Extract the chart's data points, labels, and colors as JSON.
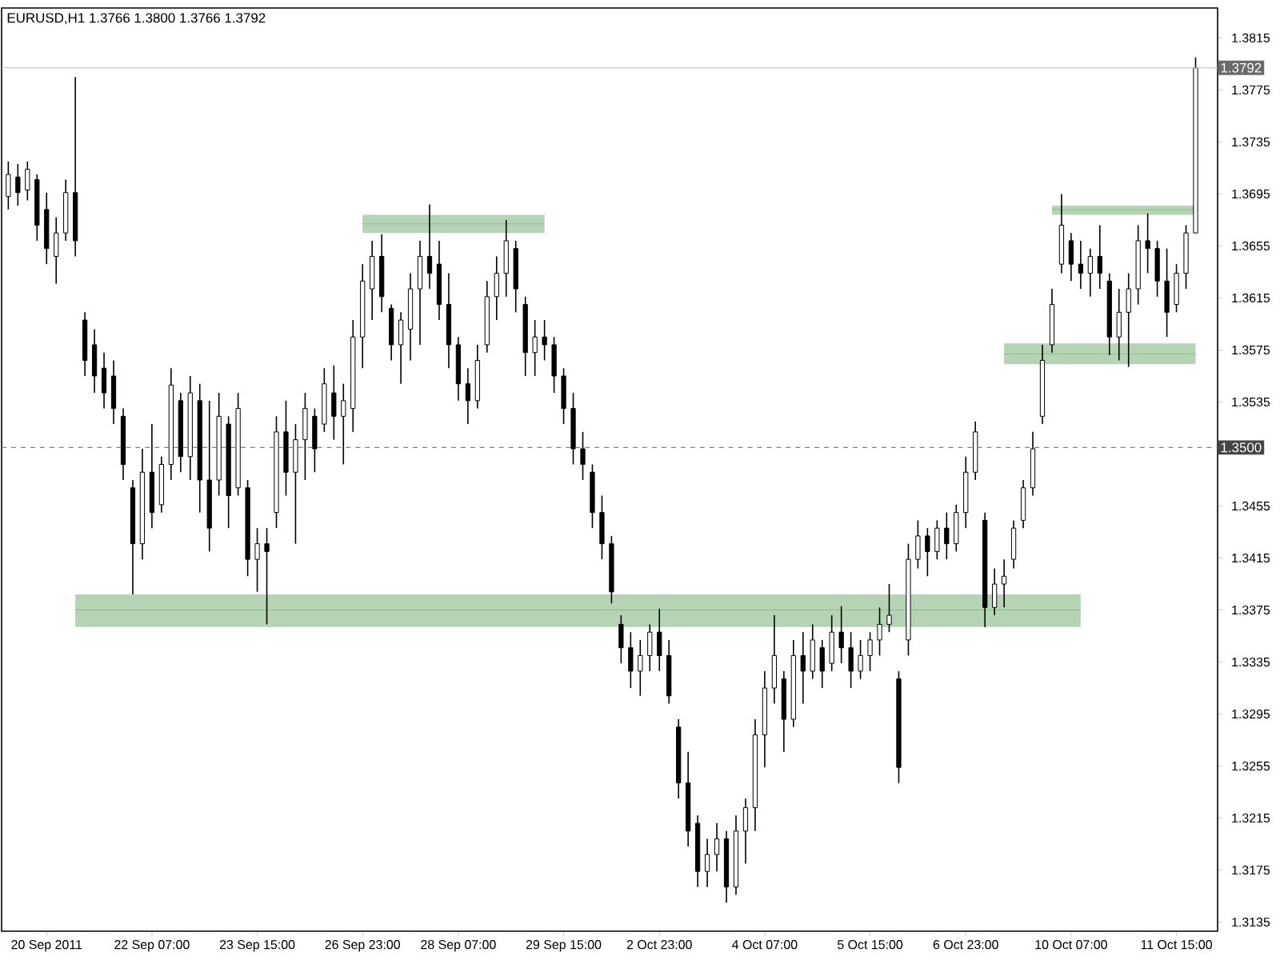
{
  "chart_data": {
    "type": "candlestick",
    "title": "EURUSD,H1  1.3766 1.3800 1.3766 1.3792",
    "categories": [
      null,
      null,
      null,
      null,
      "20 Sep 2011",
      null,
      null,
      null,
      null,
      null,
      null,
      null,
      null,
      null,
      null,
      "22 Sep 07:00",
      null,
      null,
      null,
      null,
      null,
      null,
      null,
      null,
      null,
      null,
      "23 Sep 15:00",
      null,
      null,
      null,
      null,
      null,
      null,
      null,
      null,
      null,
      null,
      "26 Sep 23:00",
      null,
      null,
      null,
      null,
      null,
      null,
      null,
      null,
      null,
      "28 Sep 07:00",
      null,
      null,
      null,
      null,
      null,
      null,
      null,
      null,
      null,
      null,
      "29 Sep 15:00",
      null,
      null,
      null,
      null,
      null,
      null,
      null,
      null,
      null,
      "2 Oct 23:00",
      null,
      null,
      null,
      null,
      null,
      null,
      null,
      null,
      null,
      null,
      "4 Oct 07:00",
      null,
      null,
      null,
      null,
      null,
      null,
      null,
      null,
      null,
      null,
      "5 Oct 15:00",
      null,
      null,
      null,
      null,
      null,
      null,
      null,
      null,
      null,
      "6 Oct 23:00",
      null,
      null,
      null,
      null,
      null,
      null,
      null,
      null,
      null,
      null,
      "10 Oct 07:00",
      null,
      null,
      null,
      null,
      null,
      null,
      null,
      null,
      null,
      null,
      "11 Oct 15:00",
      null,
      null
    ],
    "ohlc": [
      [
        1.3693,
        1.372,
        1.3683,
        1.371
      ],
      [
        1.3708,
        1.3718,
        1.3686,
        1.3696
      ],
      [
        1.3698,
        1.372,
        1.369,
        1.3714
      ],
      [
        1.3706,
        1.371,
        1.3659,
        1.3671
      ],
      [
        1.3683,
        1.3696,
        1.3641,
        1.3653
      ],
      [
        1.3647,
        1.3677,
        1.3626,
        1.3665
      ],
      [
        1.3665,
        1.3706,
        1.3659,
        1.3696
      ],
      [
        1.3696,
        1.3785,
        1.3647,
        1.3659
      ],
      [
        1.3598,
        1.3604,
        1.3555,
        1.3567
      ],
      [
        1.3579,
        1.3591,
        1.3542,
        1.3555
      ],
      [
        1.3561,
        1.3573,
        1.353,
        1.3542
      ],
      [
        1.3555,
        1.3567,
        1.3518,
        1.353
      ],
      [
        1.3524,
        1.353,
        1.3475,
        1.3487
      ],
      [
        1.3469,
        1.3475,
        1.3387,
        1.3426
      ],
      [
        1.3426,
        1.3499,
        1.3414,
        1.3481
      ],
      [
        1.3481,
        1.3518,
        1.3438,
        1.345
      ],
      [
        1.3456,
        1.3493,
        1.345,
        1.3487
      ],
      [
        1.3487,
        1.3561,
        1.3475,
        1.3548
      ],
      [
        1.3536,
        1.3542,
        1.3481,
        1.3493
      ],
      [
        1.3493,
        1.3555,
        1.3475,
        1.3542
      ],
      [
        1.3536,
        1.3549,
        1.345,
        1.3475
      ],
      [
        1.3475,
        1.3536,
        1.342,
        1.3438
      ],
      [
        1.3475,
        1.3542,
        1.3463,
        1.3524
      ],
      [
        1.3518,
        1.3524,
        1.3438,
        1.3463
      ],
      [
        1.3469,
        1.3542,
        1.3463,
        1.353
      ],
      [
        1.3469,
        1.3475,
        1.3401,
        1.3414
      ],
      [
        1.3414,
        1.3438,
        1.3389,
        1.3426
      ],
      [
        1.3426,
        1.3438,
        1.3364,
        1.342
      ],
      [
        1.345,
        1.3524,
        1.3438,
        1.3512
      ],
      [
        1.3512,
        1.3536,
        1.3463,
        1.3481
      ],
      [
        1.3481,
        1.3518,
        1.3426,
        1.3506
      ],
      [
        1.3506,
        1.3542,
        1.3475,
        1.353
      ],
      [
        1.3524,
        1.353,
        1.3481,
        1.3499
      ],
      [
        1.3518,
        1.3561,
        1.3512,
        1.3549
      ],
      [
        1.3542,
        1.3563,
        1.3506,
        1.3524
      ],
      [
        1.3524,
        1.3549,
        1.3487,
        1.3536
      ],
      [
        1.353,
        1.3598,
        1.3512,
        1.3585
      ],
      [
        1.3585,
        1.3641,
        1.3561,
        1.3628
      ],
      [
        1.3622,
        1.3659,
        1.3598,
        1.3647
      ],
      [
        1.3647,
        1.3664,
        1.3604,
        1.3616
      ],
      [
        1.3607,
        1.361,
        1.3567,
        1.3579
      ],
      [
        1.3579,
        1.3604,
        1.3549,
        1.3598
      ],
      [
        1.3591,
        1.3634,
        1.3567,
        1.3622
      ],
      [
        1.3622,
        1.3659,
        1.3579,
        1.3647
      ],
      [
        1.3647,
        1.3687,
        1.3622,
        1.3634
      ],
      [
        1.3641,
        1.3659,
        1.3598,
        1.361
      ],
      [
        1.361,
        1.3634,
        1.3561,
        1.3579
      ],
      [
        1.3579,
        1.3585,
        1.3536,
        1.3549
      ],
      [
        1.3549,
        1.3561,
        1.3518,
        1.3536
      ],
      [
        1.3536,
        1.3579,
        1.353,
        1.3567
      ],
      [
        1.3579,
        1.3628,
        1.3573,
        1.3616
      ],
      [
        1.3616,
        1.3647,
        1.3598,
        1.3634
      ],
      [
        1.3634,
        1.3675,
        1.3616,
        1.3659
      ],
      [
        1.3653,
        1.3659,
        1.3604,
        1.3622
      ],
      [
        1.361,
        1.3616,
        1.3555,
        1.3573
      ],
      [
        1.3573,
        1.3598,
        1.3555,
        1.3585
      ],
      [
        1.3585,
        1.3598,
        1.3567,
        1.3579
      ],
      [
        1.3579,
        1.3585,
        1.3542,
        1.3555
      ],
      [
        1.3555,
        1.3561,
        1.3518,
        1.353
      ],
      [
        1.353,
        1.3542,
        1.3487,
        1.3499
      ],
      [
        1.3499,
        1.3512,
        1.3475,
        1.3487
      ],
      [
        1.3481,
        1.3487,
        1.3438,
        1.345
      ],
      [
        1.345,
        1.3463,
        1.3414,
        1.3426
      ],
      [
        1.3426,
        1.3432,
        1.338,
        1.3389
      ],
      [
        1.3364,
        1.3371,
        1.3334,
        1.3346
      ],
      [
        1.3346,
        1.3358,
        1.3315,
        1.3328
      ],
      [
        1.3328,
        1.3352,
        1.3309,
        1.334
      ],
      [
        1.334,
        1.3364,
        1.3328,
        1.3358
      ],
      [
        1.3358,
        1.3376,
        1.3328,
        1.334
      ],
      [
        1.334,
        1.3352,
        1.3303,
        1.3309
      ],
      [
        1.3285,
        1.3291,
        1.323,
        1.3242
      ],
      [
        1.3242,
        1.3266,
        1.3193,
        1.3205
      ],
      [
        1.3211,
        1.3217,
        1.3162,
        1.3174
      ],
      [
        1.3174,
        1.3199,
        1.3162,
        1.3187
      ],
      [
        1.3187,
        1.3211,
        1.3174,
        1.3199
      ],
      [
        1.3199,
        1.3205,
        1.315,
        1.3162
      ],
      [
        1.3162,
        1.3217,
        1.3156,
        1.3205
      ],
      [
        1.3205,
        1.323,
        1.318,
        1.3223
      ],
      [
        1.3223,
        1.3291,
        1.3205,
        1.3279
      ],
      [
        1.3279,
        1.3328,
        1.3254,
        1.3315
      ],
      [
        1.3315,
        1.3371,
        1.3303,
        1.334
      ],
      [
        1.3322,
        1.3328,
        1.3266,
        1.3291
      ],
      [
        1.3291,
        1.3352,
        1.3285,
        1.334
      ],
      [
        1.334,
        1.3358,
        1.3303,
        1.3328
      ],
      [
        1.3328,
        1.3364,
        1.3322,
        1.3352
      ],
      [
        1.3346,
        1.3352,
        1.3315,
        1.3328
      ],
      [
        1.3334,
        1.3371,
        1.3328,
        1.3358
      ],
      [
        1.3358,
        1.3378,
        1.3334,
        1.3346
      ],
      [
        1.3346,
        1.3358,
        1.3315,
        1.3328
      ],
      [
        1.3328,
        1.3352,
        1.3322,
        1.334
      ],
      [
        1.334,
        1.3358,
        1.3328,
        1.3352
      ],
      [
        1.3352,
        1.3377,
        1.334,
        1.3364
      ],
      [
        1.3364,
        1.3395,
        1.3358,
        1.3371
      ],
      [
        1.3322,
        1.3328,
        1.3242,
        1.3254
      ],
      [
        1.3352,
        1.3426,
        1.334,
        1.3414
      ],
      [
        1.3414,
        1.3444,
        1.3407,
        1.3432
      ],
      [
        1.3432,
        1.3438,
        1.3401,
        1.342
      ],
      [
        1.342,
        1.3444,
        1.3414,
        1.3438
      ],
      [
        1.3438,
        1.345,
        1.3414,
        1.3426
      ],
      [
        1.3426,
        1.3456,
        1.342,
        1.345
      ],
      [
        1.345,
        1.3493,
        1.3438,
        1.3481
      ],
      [
        1.3481,
        1.352,
        1.3475,
        1.3512
      ],
      [
        1.3444,
        1.345,
        1.3362,
        1.3377
      ],
      [
        1.3377,
        1.3407,
        1.3371,
        1.3395
      ],
      [
        1.3395,
        1.3414,
        1.3377,
        1.3401
      ],
      [
        1.3414,
        1.3444,
        1.3407,
        1.3438
      ],
      [
        1.3444,
        1.3475,
        1.3438,
        1.3469
      ],
      [
        1.3469,
        1.3512,
        1.3463,
        1.3499
      ],
      [
        1.3524,
        1.3579,
        1.3518,
        1.3567
      ],
      [
        1.3579,
        1.3622,
        1.3573,
        1.361
      ],
      [
        1.3641,
        1.3695,
        1.3634,
        1.3671
      ],
      [
        1.3659,
        1.3665,
        1.3628,
        1.3641
      ],
      [
        1.3641,
        1.3659,
        1.3622,
        1.3634
      ],
      [
        1.3634,
        1.3653,
        1.3616,
        1.3647
      ],
      [
        1.3647,
        1.3671,
        1.3622,
        1.3634
      ],
      [
        1.3628,
        1.3634,
        1.3571,
        1.3585
      ],
      [
        1.3585,
        1.3622,
        1.3567,
        1.3604
      ],
      [
        1.3604,
        1.3634,
        1.3562,
        1.3622
      ],
      [
        1.3622,
        1.3671,
        1.361,
        1.3659
      ],
      [
        1.3659,
        1.368,
        1.3634,
        1.3653
      ],
      [
        1.3653,
        1.3659,
        1.3616,
        1.3628
      ],
      [
        1.3628,
        1.3653,
        1.3585,
        1.3604
      ],
      [
        1.361,
        1.3641,
        1.3604,
        1.3634
      ],
      [
        1.3634,
        1.3671,
        1.3622,
        1.3665
      ],
      [
        1.3665,
        1.38,
        1.3665,
        1.3792
      ]
    ],
    "color": "#000000",
    "series": [
      {
        "type": "line",
        "color": "#8fbc8f",
        "values": [
          null,
          null,
          null,
          null,
          null,
          null,
          null,
          1.3375,
          1.3375,
          1.3375,
          1.3375,
          1.3375,
          1.3375,
          1.3375,
          1.3375,
          1.3375,
          1.3375,
          1.3375,
          1.3375,
          1.3375,
          1.3375,
          1.3375,
          1.3375,
          1.3375,
          1.3375,
          1.3375,
          1.3375,
          1.3375,
          1.3375,
          1.3375,
          1.3375,
          1.3375,
          1.3375,
          1.3375,
          1.3375,
          1.3375,
          1.3375,
          1.3375,
          1.3375,
          1.3375,
          1.3375,
          1.3375,
          1.3375,
          1.3375,
          1.3375,
          1.3375,
          1.3375,
          1.3375,
          1.3375,
          1.3375,
          1.3375,
          1.3375,
          1.3375,
          1.3375,
          1.3375,
          1.3375,
          1.3375,
          1.3375,
          1.3375,
          1.3375,
          1.3375,
          1.3375,
          1.3375,
          1.3375,
          1.3375,
          1.3375,
          1.3375,
          1.3375,
          1.3375,
          1.3375,
          1.3375,
          1.3375,
          1.3375,
          1.3375,
          1.3375,
          1.3375,
          1.3375,
          1.3375,
          1.3375,
          1.3375,
          1.3375,
          1.3375,
          1.3375,
          1.3375,
          1.3375,
          1.3375,
          1.3375,
          1.3375,
          1.3375,
          1.3375,
          1.3375,
          1.3375,
          1.3375,
          1.3375,
          1.3375,
          1.3375,
          1.3375,
          1.3375,
          1.3375,
          1.3375,
          1.3375,
          1.3375,
          1.3375,
          1.3375,
          1.3375,
          1.3375,
          1.3375,
          1.3375,
          1.3375,
          1.3375,
          1.3375,
          1.3375,
          1.3375,
          null,
          null,
          null,
          null,
          null,
          null,
          null,
          null,
          null,
          null,
          null,
          null
        ],
        "lower": [
          null,
          null,
          null,
          null,
          null,
          null,
          null,
          1.3362,
          1.3362,
          1.3362,
          1.3362,
          1.3362,
          1.3362,
          1.3362,
          1.3362,
          1.3362,
          1.3362,
          1.3362,
          1.3362,
          1.3362,
          1.3362,
          1.3362,
          1.3362,
          1.3362,
          1.3362,
          1.3362,
          1.3362,
          1.3362,
          1.3362,
          1.3362,
          1.3362,
          1.3362,
          1.3362,
          1.3362,
          1.3362,
          1.3362,
          1.3362,
          1.3362,
          1.3362,
          1.3362,
          1.3362,
          1.3362,
          1.3362,
          1.3362,
          1.3362,
          1.3362,
          1.3362,
          1.3362,
          1.3362,
          1.3362,
          1.3362,
          1.3362,
          1.3362,
          1.3362,
          1.3362,
          1.3362,
          1.3362,
          1.3362,
          1.3362,
          1.3362,
          1.3362,
          1.3362,
          1.3362,
          1.3362,
          1.3362,
          1.3362,
          1.3362,
          1.3362,
          1.3362,
          1.3362,
          1.3362,
          1.3362,
          1.3362,
          1.3362,
          1.3362,
          1.3362,
          1.3362,
          1.3362,
          1.3362,
          1.3362,
          1.3362,
          1.3362,
          1.3362,
          1.3362,
          1.3362,
          1.3362,
          1.3362,
          1.3362,
          1.3362,
          1.3362,
          1.3362,
          1.3362,
          1.3362,
          1.3362,
          1.3362,
          1.3362,
          1.3362,
          1.3362,
          1.3362,
          1.3362,
          1.3362,
          1.3362,
          1.3362,
          1.3362,
          1.3362,
          1.3362,
          1.3362,
          1.3362,
          1.3362,
          1.3362,
          1.3362,
          1.3362,
          1.3362,
          null,
          null,
          null,
          null,
          null,
          null,
          null,
          null,
          null,
          null,
          null,
          null
        ],
        "upper": [
          null,
          null,
          null,
          null,
          null,
          null,
          null,
          1.3387,
          1.3387,
          1.3387,
          1.3387,
          1.3387,
          1.3387,
          1.3387,
          1.3387,
          1.3387,
          1.3387,
          1.3387,
          1.3387,
          1.3387,
          1.3387,
          1.3387,
          1.3387,
          1.3387,
          1.3387,
          1.3387,
          1.3387,
          1.3387,
          1.3387,
          1.3387,
          1.3387,
          1.3387,
          1.3387,
          1.3387,
          1.3387,
          1.3387,
          1.3387,
          1.3387,
          1.3387,
          1.3387,
          1.3387,
          1.3387,
          1.3387,
          1.3387,
          1.3387,
          1.3387,
          1.3387,
          1.3387,
          1.3387,
          1.3387,
          1.3387,
          1.3387,
          1.3387,
          1.3387,
          1.3387,
          1.3387,
          1.3387,
          1.3387,
          1.3387,
          1.3387,
          1.3387,
          1.3387,
          1.3387,
          1.3387,
          1.3387,
          1.3387,
          1.3387,
          1.3387,
          1.3387,
          1.3387,
          1.3387,
          1.3387,
          1.3387,
          1.3387,
          1.3387,
          1.3387,
          1.3387,
          1.3387,
          1.3387,
          1.3387,
          1.3387,
          1.3387,
          1.3387,
          1.3387,
          1.3387,
          1.3387,
          1.3387,
          1.3387,
          1.3387,
          1.3387,
          1.3387,
          1.3387,
          1.3387,
          1.3387,
          1.3387,
          1.3387,
          1.3387,
          1.3387,
          1.3387,
          1.3387,
          1.3387,
          1.3387,
          1.3387,
          1.3387,
          1.3387,
          1.3387,
          1.3387,
          1.3387,
          1.3387,
          1.3387,
          1.3387,
          1.3387,
          1.3387,
          null,
          null,
          null,
          null,
          null,
          null,
          null,
          null,
          null,
          null,
          null,
          null
        ]
      },
      {
        "type": "line",
        "color": "#8fbc8f",
        "values": [
          null,
          null,
          null,
          null,
          null,
          null,
          null,
          null,
          null,
          null,
          null,
          null,
          null,
          null,
          null,
          null,
          null,
          null,
          null,
          null,
          null,
          null,
          null,
          null,
          null,
          null,
          null,
          null,
          null,
          null,
          null,
          null,
          null,
          null,
          null,
          null,
          null,
          1.3672,
          1.3672,
          1.3672,
          1.3672,
          1.3672,
          1.3672,
          1.3672,
          1.3672,
          1.3672,
          1.3672,
          1.3672,
          1.3672,
          1.3672,
          1.3672,
          1.3672,
          1.3672,
          1.3672,
          1.3672,
          1.3672,
          1.3672,
          null,
          null,
          null,
          null,
          null,
          null,
          null,
          null,
          null,
          null,
          null,
          null,
          null,
          null,
          null,
          null,
          null,
          null,
          null,
          null,
          null,
          null,
          null,
          null,
          null,
          null,
          null,
          null,
          null,
          null,
          null,
          null,
          null,
          null,
          null,
          null,
          null,
          null,
          null,
          null,
          null,
          null,
          null,
          null,
          null,
          null,
          null,
          null,
          null,
          null,
          null,
          null,
          null,
          null,
          null,
          null,
          null,
          null,
          null,
          null,
          null,
          null,
          null,
          null,
          null,
          null,
          null,
          null
        ],
        "lower": [
          null,
          null,
          null,
          null,
          null,
          null,
          null,
          null,
          null,
          null,
          null,
          null,
          null,
          null,
          null,
          null,
          null,
          null,
          null,
          null,
          null,
          null,
          null,
          null,
          null,
          null,
          null,
          null,
          null,
          null,
          null,
          null,
          null,
          null,
          null,
          null,
          null,
          1.3665,
          1.3665,
          1.3665,
          1.3665,
          1.3665,
          1.3665,
          1.3665,
          1.3665,
          1.3665,
          1.3665,
          1.3665,
          1.3665,
          1.3665,
          1.3665,
          1.3665,
          1.3665,
          1.3665,
          1.3665,
          1.3665,
          1.3665,
          null,
          null,
          null,
          null,
          null,
          null,
          null,
          null,
          null,
          null,
          null,
          null,
          null,
          null,
          null,
          null,
          null,
          null,
          null,
          null,
          null,
          null,
          null,
          null,
          null,
          null,
          null,
          null,
          null,
          null,
          null,
          null,
          null,
          null,
          null,
          null,
          null,
          null,
          null,
          null,
          null,
          null,
          null,
          null,
          null,
          null,
          null,
          null,
          null,
          null,
          null,
          null,
          null,
          null,
          null,
          null,
          null,
          null,
          null,
          null,
          null,
          null,
          null,
          null,
          null,
          null,
          null,
          null
        ],
        "upper": [
          null,
          null,
          null,
          null,
          null,
          null,
          null,
          null,
          null,
          null,
          null,
          null,
          null,
          null,
          null,
          null,
          null,
          null,
          null,
          null,
          null,
          null,
          null,
          null,
          null,
          null,
          null,
          null,
          null,
          null,
          null,
          null,
          null,
          null,
          null,
          null,
          null,
          1.3679,
          1.3679,
          1.3679,
          1.3679,
          1.3679,
          1.3679,
          1.3679,
          1.3679,
          1.3679,
          1.3679,
          1.3679,
          1.3679,
          1.3679,
          1.3679,
          1.3679,
          1.3679,
          1.3679,
          1.3679,
          1.3679,
          1.3679,
          null,
          null,
          null,
          null,
          null,
          null,
          null,
          null,
          null,
          null,
          null,
          null,
          null,
          null,
          null,
          null,
          null,
          null,
          null,
          null,
          null,
          null,
          null,
          null,
          null,
          null,
          null,
          null,
          null,
          null,
          null,
          null,
          null,
          null,
          null,
          null,
          null,
          null,
          null,
          null,
          null,
          null,
          null,
          null,
          null,
          null,
          null,
          null,
          null,
          null,
          null,
          null,
          null,
          null,
          null,
          null,
          null,
          null,
          null,
          null,
          null,
          null,
          null,
          null,
          null,
          null,
          null,
          null
        ]
      },
      {
        "type": "line",
        "color": "#8fbc8f",
        "values": [
          null,
          null,
          null,
          null,
          null,
          null,
          null,
          null,
          null,
          null,
          null,
          null,
          null,
          null,
          null,
          null,
          null,
          null,
          null,
          null,
          null,
          null,
          null,
          null,
          null,
          null,
          null,
          null,
          null,
          null,
          null,
          null,
          null,
          null,
          null,
          null,
          null,
          null,
          null,
          null,
          null,
          null,
          null,
          null,
          null,
          null,
          null,
          null,
          null,
          null,
          null,
          null,
          null,
          null,
          null,
          null,
          null,
          null,
          null,
          null,
          null,
          null,
          null,
          null,
          null,
          null,
          null,
          null,
          null,
          null,
          null,
          null,
          null,
          null,
          null,
          null,
          null,
          null,
          null,
          null,
          null,
          null,
          null,
          null,
          null,
          null,
          null,
          null,
          null,
          null,
          null,
          null,
          null,
          null,
          null,
          null,
          null,
          null,
          null,
          null,
          null,
          null,
          null,
          null,
          1.3572,
          1.3572,
          1.3572,
          1.3572,
          1.3572,
          1.3572,
          1.3572,
          1.3572,
          1.3572,
          1.3572,
          1.3572,
          1.3572,
          1.3572,
          1.3572,
          1.3572,
          1.3572,
          1.3572,
          1.3572,
          1.3572,
          1.3572,
          1.3572
        ],
        "lower": [
          null,
          null,
          null,
          null,
          null,
          null,
          null,
          null,
          null,
          null,
          null,
          null,
          null,
          null,
          null,
          null,
          null,
          null,
          null,
          null,
          null,
          null,
          null,
          null,
          null,
          null,
          null,
          null,
          null,
          null,
          null,
          null,
          null,
          null,
          null,
          null,
          null,
          null,
          null,
          null,
          null,
          null,
          null,
          null,
          null,
          null,
          null,
          null,
          null,
          null,
          null,
          null,
          null,
          null,
          null,
          null,
          null,
          null,
          null,
          null,
          null,
          null,
          null,
          null,
          null,
          null,
          null,
          null,
          null,
          null,
          null,
          null,
          null,
          null,
          null,
          null,
          null,
          null,
          null,
          null,
          null,
          null,
          null,
          null,
          null,
          null,
          null,
          null,
          null,
          null,
          null,
          null,
          null,
          null,
          null,
          null,
          null,
          null,
          null,
          null,
          null,
          null,
          null,
          null,
          1.3564,
          1.3564,
          1.3564,
          1.3564,
          1.3564,
          1.3564,
          1.3564,
          1.3564,
          1.3564,
          1.3564,
          1.3564,
          1.3564,
          1.3564,
          1.3564,
          1.3564,
          1.3564,
          1.3564,
          1.3564,
          1.3564,
          1.3564,
          1.3564
        ],
        "upper": [
          null,
          null,
          null,
          null,
          null,
          null,
          null,
          null,
          null,
          null,
          null,
          null,
          null,
          null,
          null,
          null,
          null,
          null,
          null,
          null,
          null,
          null,
          null,
          null,
          null,
          null,
          null,
          null,
          null,
          null,
          null,
          null,
          null,
          null,
          null,
          null,
          null,
          null,
          null,
          null,
          null,
          null,
          null,
          null,
          null,
          null,
          null,
          null,
          null,
          null,
          null,
          null,
          null,
          null,
          null,
          null,
          null,
          null,
          null,
          null,
          null,
          null,
          null,
          null,
          null,
          null,
          null,
          null,
          null,
          null,
          null,
          null,
          null,
          null,
          null,
          null,
          null,
          null,
          null,
          null,
          null,
          null,
          null,
          null,
          null,
          null,
          null,
          null,
          null,
          null,
          null,
          null,
          null,
          null,
          null,
          null,
          null,
          null,
          null,
          null,
          null,
          null,
          null,
          null,
          1.358,
          1.358,
          1.358,
          1.358,
          1.358,
          1.358,
          1.358,
          1.358,
          1.358,
          1.358,
          1.358,
          1.358,
          1.358,
          1.358,
          1.358,
          1.358,
          1.358,
          1.358,
          1.358,
          1.358,
          1.358
        ]
      },
      {
        "type": "line",
        "color": "#8fbc8f",
        "values": [
          null,
          null,
          null,
          null,
          null,
          null,
          null,
          null,
          null,
          null,
          null,
          null,
          null,
          null,
          null,
          null,
          null,
          null,
          null,
          null,
          null,
          null,
          null,
          null,
          null,
          null,
          null,
          null,
          null,
          null,
          null,
          null,
          null,
          null,
          null,
          null,
          null,
          null,
          null,
          null,
          null,
          null,
          null,
          null,
          null,
          null,
          null,
          null,
          null,
          null,
          null,
          null,
          null,
          null,
          null,
          null,
          null,
          null,
          null,
          null,
          null,
          null,
          null,
          null,
          null,
          null,
          null,
          null,
          null,
          null,
          null,
          null,
          null,
          null,
          null,
          null,
          null,
          null,
          null,
          null,
          null,
          null,
          null,
          null,
          null,
          null,
          null,
          null,
          null,
          null,
          null,
          null,
          null,
          null,
          null,
          null,
          null,
          null,
          null,
          null,
          null,
          null,
          null,
          null,
          null,
          null,
          null,
          null,
          null,
          1.3683,
          1.3683,
          1.3683,
          1.3683,
          1.3683,
          1.3683,
          1.3683,
          1.3683,
          1.3683,
          1.3683,
          1.3683,
          1.3683,
          1.3683,
          1.3683,
          1.3683,
          1.3683
        ],
        "lower": [
          null,
          null,
          null,
          null,
          null,
          null,
          null,
          null,
          null,
          null,
          null,
          null,
          null,
          null,
          null,
          null,
          null,
          null,
          null,
          null,
          null,
          null,
          null,
          null,
          null,
          null,
          null,
          null,
          null,
          null,
          null,
          null,
          null,
          null,
          null,
          null,
          null,
          null,
          null,
          null,
          null,
          null,
          null,
          null,
          null,
          null,
          null,
          null,
          null,
          null,
          null,
          null,
          null,
          null,
          null,
          null,
          null,
          null,
          null,
          null,
          null,
          null,
          null,
          null,
          null,
          null,
          null,
          null,
          null,
          null,
          null,
          null,
          null,
          null,
          null,
          null,
          null,
          null,
          null,
          null,
          null,
          null,
          null,
          null,
          null,
          null,
          null,
          null,
          null,
          null,
          null,
          null,
          null,
          null,
          null,
          null,
          null,
          null,
          null,
          null,
          null,
          null,
          null,
          null,
          null,
          null,
          null,
          null,
          null,
          1.3679,
          1.3679,
          1.3679,
          1.3679,
          1.3679,
          1.3679,
          1.3679,
          1.3679,
          1.3679,
          1.3679,
          1.3679,
          1.3679,
          1.3679,
          1.3679,
          1.3679,
          1.3679
        ],
        "upper": [
          null,
          null,
          null,
          null,
          null,
          null,
          null,
          null,
          null,
          null,
          null,
          null,
          null,
          null,
          null,
          null,
          null,
          null,
          null,
          null,
          null,
          null,
          null,
          null,
          null,
          null,
          null,
          null,
          null,
          null,
          null,
          null,
          null,
          null,
          null,
          null,
          null,
          null,
          null,
          null,
          null,
          null,
          null,
          null,
          null,
          null,
          null,
          null,
          null,
          null,
          null,
          null,
          null,
          null,
          null,
          null,
          null,
          null,
          null,
          null,
          null,
          null,
          null,
          null,
          null,
          null,
          null,
          null,
          null,
          null,
          null,
          null,
          null,
          null,
          null,
          null,
          null,
          null,
          null,
          null,
          null,
          null,
          null,
          null,
          null,
          null,
          null,
          null,
          null,
          null,
          null,
          null,
          null,
          null,
          null,
          null,
          null,
          null,
          null,
          null,
          null,
          null,
          null,
          null,
          null,
          null,
          null,
          null,
          null,
          1.3686,
          1.3686,
          1.3686,
          1.3686,
          1.3686,
          1.3686,
          1.3686,
          1.3686,
          1.3686,
          1.3686,
          1.3686,
          1.3686,
          1.3686,
          1.3686,
          1.3686,
          1.3686
        ]
      }
    ],
    "ref_lines": [
      {
        "axis": "y",
        "value": 1.3792,
        "label": "1.3792",
        "color": "#c0c0c0",
        "line_style": "solid"
      },
      {
        "axis": "y",
        "value": 1.35,
        "label": "1.3500",
        "color": "#808080",
        "line_style": "dashed"
      }
    ],
    "ylim": [
      1.3128,
      1.3838
    ],
    "yticks": [
      1.3135,
      1.3175,
      1.3215,
      1.3255,
      1.3295,
      1.3335,
      1.3375,
      1.3415,
      1.3455,
      1.3535,
      1.3575,
      1.3615,
      1.3655,
      1.3695,
      1.3735,
      1.3775,
      1.3815
    ]
  }
}
